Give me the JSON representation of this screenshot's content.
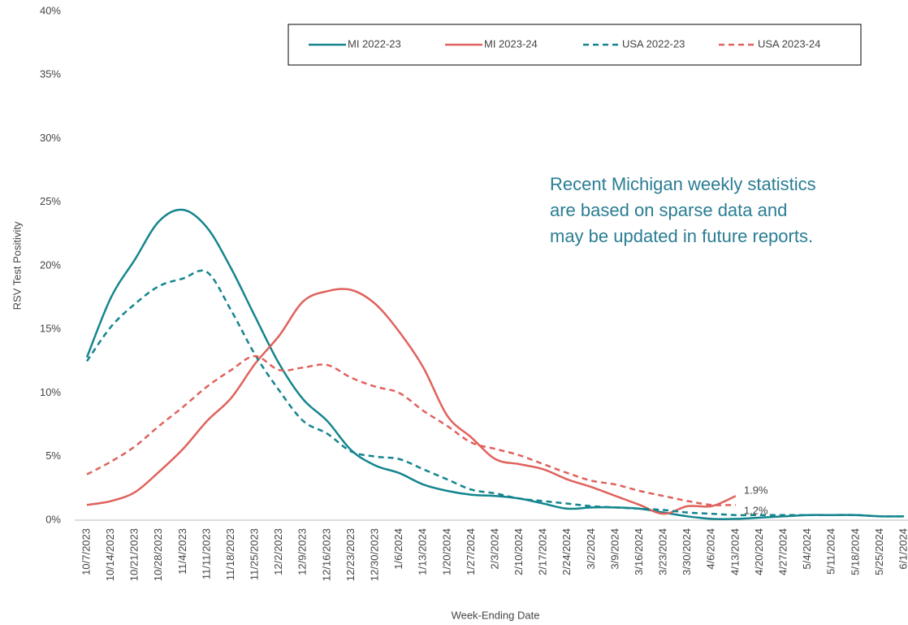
{
  "chart_data": {
    "type": "line",
    "y_label": "RSV Test Positivity",
    "x_label": "Week-Ending Date",
    "annotation": [
      "Recent Michigan weekly statistics",
      "are based on sparse data and",
      "may be updated in future reports."
    ],
    "categories": [
      "10/7/2023",
      "10/14/2023",
      "10/21/2023",
      "10/28/2023",
      "11/4/2023",
      "11/11/2023",
      "11/18/2023",
      "11/25/2023",
      "12/2/2023",
      "12/9/2023",
      "12/16/2023",
      "12/23/2023",
      "12/30/2023",
      "1/6/2024",
      "1/13/2024",
      "1/20/2024",
      "1/27/2024",
      "2/3/2024",
      "2/10/2024",
      "2/17/2024",
      "2/24/2024",
      "3/2/2024",
      "3/9/2024",
      "3/16/2024",
      "3/23/2024",
      "3/30/2024",
      "4/6/2024",
      "4/13/2024",
      "4/20/2024",
      "4/27/2024",
      "5/4/2024",
      "5/11/2024",
      "5/18/2024",
      "5/25/2024",
      "6/1/2024"
    ],
    "series": [
      {
        "name": "MI 2022-23",
        "color": "#14858e",
        "dash": false,
        "values": [
          12.8,
          17.5,
          20.5,
          23.5,
          24.4,
          23,
          19.8,
          16,
          12.3,
          9.5,
          7.8,
          5.5,
          4.3,
          3.7,
          2.8,
          2.3,
          2.0,
          1.9,
          1.7,
          1.3,
          0.9,
          1.0,
          1.0,
          0.9,
          0.6,
          0.3,
          0.1,
          0.1,
          0.2,
          0.3,
          0.4,
          0.4,
          0.4,
          0.3,
          0.3
        ]
      },
      {
        "name": "MI 2023-24",
        "color": "#e0625c",
        "dash": false,
        "values": [
          1.2,
          1.5,
          2.2,
          3.8,
          5.6,
          7.8,
          9.6,
          12.3,
          14.5,
          17.2,
          18.0,
          18.1,
          17.0,
          14.8,
          12.0,
          8.2,
          6.5,
          4.8,
          4.4,
          4.0,
          3.2,
          2.6,
          1.9,
          1.2,
          0.5,
          1.1,
          1.1,
          1.9,
          null,
          null,
          null,
          null,
          null,
          null,
          null
        ],
        "value_labels": [
          null,
          null,
          null,
          null,
          null,
          null,
          null,
          null,
          null,
          null,
          null,
          null,
          null,
          null,
          null,
          null,
          null,
          null,
          null,
          null,
          null,
          null,
          null,
          null,
          null,
          null,
          null,
          "1.9%",
          null,
          null,
          null,
          null,
          null,
          null,
          null
        ]
      },
      {
        "name": "USA 2022-23",
        "color": "#14858e",
        "dash": true,
        "values": [
          12.5,
          15.2,
          17.0,
          18.4,
          19.0,
          19.5,
          16.5,
          13,
          10.2,
          7.8,
          6.8,
          5.4,
          5.0,
          4.8,
          4.0,
          3.2,
          2.4,
          2.1,
          1.7,
          1.5,
          1.3,
          1.1,
          1.0,
          0.9,
          0.8,
          0.6,
          0.5,
          0.4,
          0.4,
          0.4,
          0.4,
          0.4,
          0.4,
          0.3,
          0.3
        ]
      },
      {
        "name": "USA 2023-24",
        "color": "#e0625c",
        "dash": true,
        "values": [
          3.6,
          4.6,
          5.8,
          7.4,
          8.9,
          10.5,
          11.8,
          12.9,
          11.8,
          12.0,
          12.2,
          11.2,
          10.5,
          10.0,
          8.6,
          7.4,
          6.1,
          5.6,
          5.1,
          4.4,
          3.7,
          3.1,
          2.8,
          2.3,
          1.9,
          1.5,
          1.2,
          1.2,
          null,
          null,
          null,
          null,
          null,
          null,
          null
        ],
        "value_labels": [
          null,
          null,
          null,
          null,
          null,
          null,
          null,
          null,
          null,
          null,
          null,
          null,
          null,
          null,
          null,
          null,
          null,
          null,
          null,
          null,
          null,
          null,
          null,
          null,
          null,
          null,
          null,
          "1.2%",
          null,
          null,
          null,
          null,
          null,
          null,
          null
        ]
      }
    ],
    "ylim": [
      0,
      40
    ],
    "yticks": [
      {
        "value": 0,
        "label": "0%"
      },
      {
        "value": 5,
        "label": "5%"
      },
      {
        "value": 10,
        "label": "10%"
      },
      {
        "value": 15,
        "label": "15%"
      },
      {
        "value": 20,
        "label": "20%"
      },
      {
        "value": 25,
        "label": "25%"
      },
      {
        "value": 30,
        "label": "30%"
      },
      {
        "value": 35,
        "label": "35%"
      },
      {
        "value": 40,
        "label": "40%"
      }
    ],
    "grid": false,
    "legend": "top"
  }
}
